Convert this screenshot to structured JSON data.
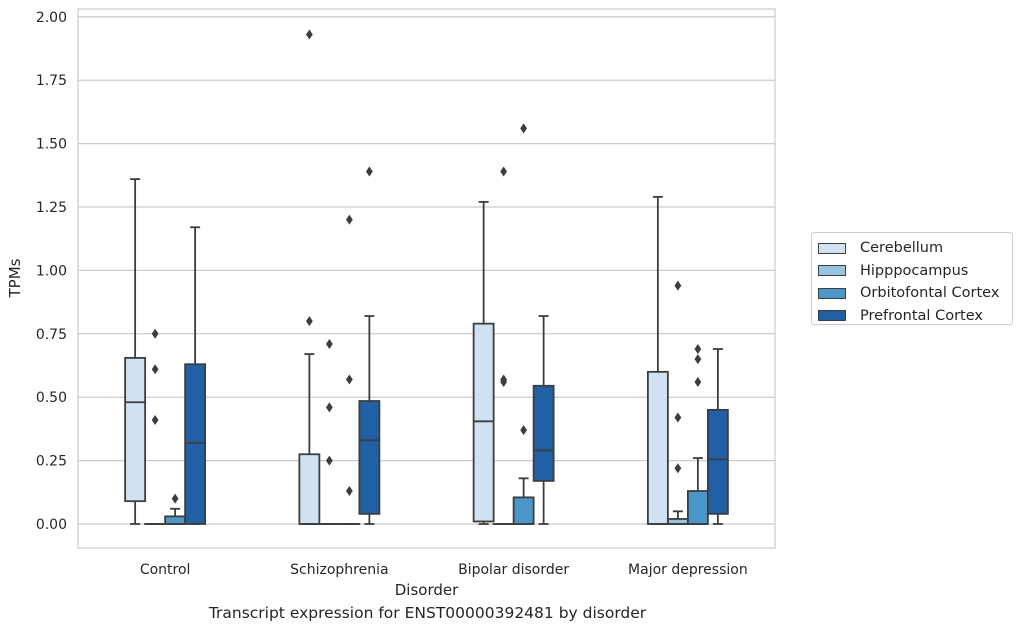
{
  "chart_data": {
    "type": "box",
    "title": "",
    "caption": "Transcript expression for ENST00000392481 by disorder",
    "xlabel": "Disorder",
    "ylabel": "TPMs",
    "ylim": [
      -0.1,
      2.02
    ],
    "yticks": [
      "0.00",
      "0.25",
      "0.50",
      "0.75",
      "1.00",
      "1.25",
      "1.50",
      "1.75",
      "2.00"
    ],
    "grid": "horizontal",
    "legend_position": "right",
    "categories": [
      "Control",
      "Schizophrenia",
      "Bipolar disorder",
      "Major depression"
    ],
    "series": [
      {
        "name": "Cerebellum",
        "color": "#d0e1f2",
        "boxes": [
          {
            "whislo": 0.0,
            "q1": 0.09,
            "med": 0.48,
            "q3": 0.655,
            "whishi": 1.36,
            "fliers": []
          },
          {
            "whislo": 0.0,
            "q1": 0.0,
            "med": 0.0,
            "q3": 0.275,
            "whishi": 0.67,
            "fliers": [
              0.8,
              1.93
            ]
          },
          {
            "whislo": 0.0,
            "q1": 0.01,
            "med": 0.405,
            "q3": 0.79,
            "whishi": 1.27,
            "fliers": []
          },
          {
            "whislo": 0.0,
            "q1": 0.0,
            "med": 0.0,
            "q3": 0.6,
            "whishi": 1.29,
            "fliers": []
          }
        ]
      },
      {
        "name": "Hipppocampus",
        "color": "#94c4df",
        "boxes": [
          {
            "whislo": 0.0,
            "q1": 0.0,
            "med": 0.0,
            "q3": 0.0,
            "whishi": 0.0,
            "fliers": [
              0.41,
              0.61,
              0.75
            ]
          },
          {
            "whislo": 0.0,
            "q1": 0.0,
            "med": 0.0,
            "q3": 0.0,
            "whishi": 0.0,
            "fliers": [
              0.25,
              0.46,
              0.71
            ]
          },
          {
            "whislo": 0.0,
            "q1": 0.0,
            "med": 0.0,
            "q3": 0.0,
            "whishi": 0.0,
            "fliers": [
              0.56,
              0.57,
              1.39
            ]
          },
          {
            "whislo": 0.0,
            "q1": 0.0,
            "med": 0.0,
            "q3": 0.02,
            "whishi": 0.05,
            "fliers": [
              0.22,
              0.42,
              0.94
            ]
          }
        ]
      },
      {
        "name": "Orbitofontal Cortex",
        "color": "#4a98c9",
        "boxes": [
          {
            "whislo": 0.0,
            "q1": 0.0,
            "med": 0.0,
            "q3": 0.03,
            "whishi": 0.06,
            "fliers": [
              0.1
            ]
          },
          {
            "whislo": 0.0,
            "q1": 0.0,
            "med": 0.0,
            "q3": 0.0,
            "whishi": 0.0,
            "fliers": [
              0.13,
              0.57,
              1.2
            ]
          },
          {
            "whislo": 0.0,
            "q1": 0.0,
            "med": 0.0,
            "q3": 0.105,
            "whishi": 0.18,
            "fliers": [
              0.37,
              1.56
            ]
          },
          {
            "whislo": 0.0,
            "q1": 0.0,
            "med": 0.0,
            "q3": 0.13,
            "whishi": 0.26,
            "fliers": [
              0.56,
              0.65,
              0.69
            ]
          }
        ]
      },
      {
        "name": "Prefrontal Cortex",
        "color": "#2060a6",
        "boxes": [
          {
            "whislo": 0.0,
            "q1": 0.0,
            "med": 0.32,
            "q3": 0.63,
            "whishi": 1.17,
            "fliers": []
          },
          {
            "whislo": 0.0,
            "q1": 0.04,
            "med": 0.33,
            "q3": 0.485,
            "whishi": 0.82,
            "fliers": [
              1.39
            ]
          },
          {
            "whislo": 0.0,
            "q1": 0.17,
            "med": 0.29,
            "q3": 0.545,
            "whishi": 0.82,
            "fliers": []
          },
          {
            "whislo": 0.0,
            "q1": 0.04,
            "med": 0.255,
            "q3": 0.45,
            "whishi": 0.69,
            "fliers": []
          }
        ]
      }
    ]
  }
}
